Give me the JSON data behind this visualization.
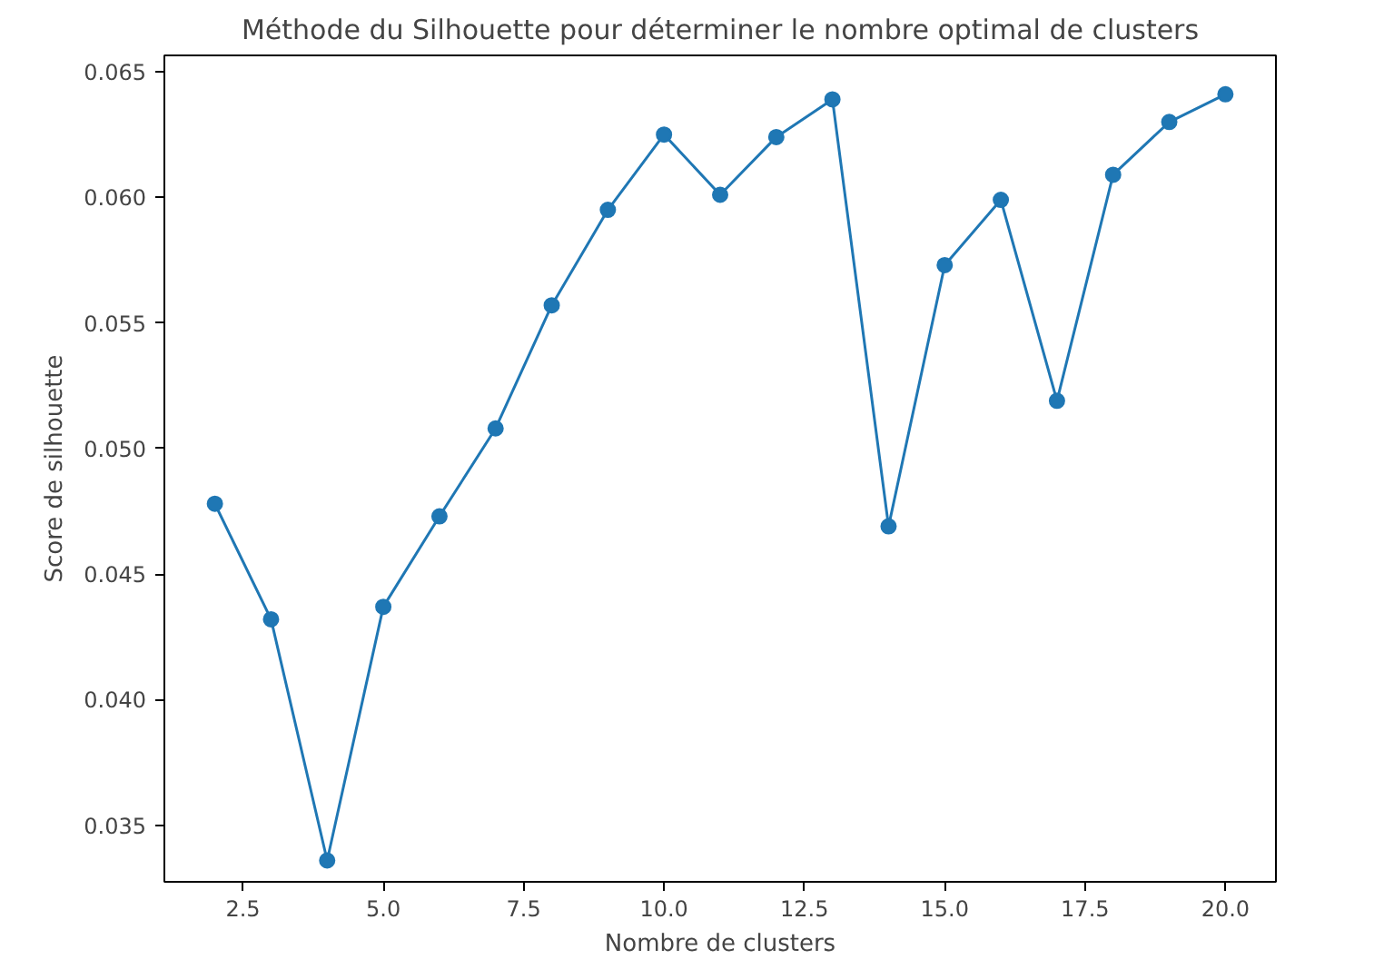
{
  "chart_data": {
    "type": "line",
    "title": "Méthode du Silhouette pour déterminer le nombre optimal de clusters",
    "xlabel": "Nombre de clusters",
    "ylabel": "Score de silhouette",
    "x": [
      2,
      3,
      4,
      5,
      6,
      7,
      8,
      9,
      10,
      11,
      12,
      13,
      14,
      15,
      16,
      17,
      18,
      19,
      20
    ],
    "series": [
      {
        "color": "#1f77b4",
        "values": [
          0.0478,
          0.0432,
          0.0336,
          0.0437,
          0.0473,
          0.0508,
          0.0557,
          0.0595,
          0.0625,
          0.0601,
          0.0624,
          0.0639,
          0.0469,
          0.0573,
          0.0599,
          0.0519,
          0.0609,
          0.063,
          0.0641
        ]
      }
    ],
    "xlim": [
      1.1,
      20.9
    ],
    "ylim": [
      0.03275,
      0.06565
    ],
    "xticks": [
      {
        "value": 2.5,
        "label": "2.5"
      },
      {
        "value": 5,
        "label": "5.0"
      },
      {
        "value": 7.5,
        "label": "7.5"
      },
      {
        "value": 10,
        "label": "10.0"
      },
      {
        "value": 12.5,
        "label": "12.5"
      },
      {
        "value": 15,
        "label": "15.0"
      },
      {
        "value": 17.5,
        "label": "17.5"
      },
      {
        "value": 20,
        "label": "20.0"
      }
    ],
    "yticks": [
      {
        "value": 0.035,
        "label": "0.035"
      },
      {
        "value": 0.04,
        "label": "0.040"
      },
      {
        "value": 0.045,
        "label": "0.045"
      },
      {
        "value": 0.05,
        "label": "0.050"
      },
      {
        "value": 0.055,
        "label": "0.055"
      },
      {
        "value": 0.06,
        "label": "0.060"
      },
      {
        "value": 0.065,
        "label": "0.065"
      }
    ],
    "marker": "circle",
    "line_style": "solid",
    "grid": false
  }
}
